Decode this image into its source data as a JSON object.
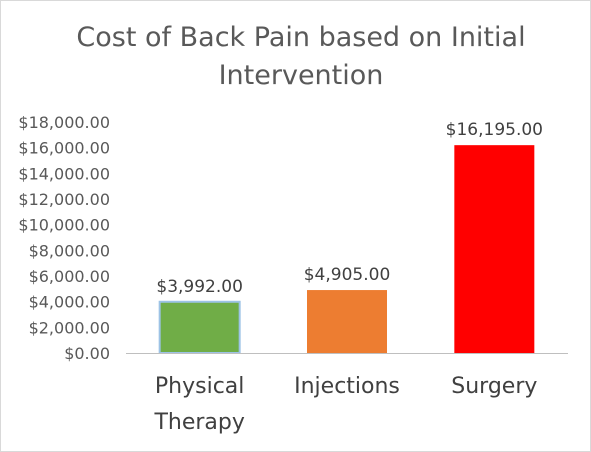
{
  "chart_data": {
    "type": "bar",
    "title": "Cost of Back Pain based on Initial Intervention",
    "categories": [
      [
        "Physical",
        "Therapy"
      ],
      [
        "Injections"
      ],
      [
        "Surgery"
      ]
    ],
    "values": [
      3992,
      4905,
      16195
    ],
    "data_labels": [
      "$3,992.00",
      "$4,905.00",
      "$16,195.00"
    ],
    "colors": [
      "#70ad47",
      "#ed7d31",
      "#ff0000"
    ],
    "ylim": [
      0,
      18000
    ],
    "yticks": [
      0,
      2000,
      4000,
      6000,
      8000,
      10000,
      12000,
      14000,
      16000,
      18000
    ],
    "ytick_labels": [
      "$0.00",
      "$2,000.00",
      "$4,000.00",
      "$6,000.00",
      "$8,000.00",
      "$10,000.00",
      "$12,000.00",
      "$14,000.00",
      "$16,000.00",
      "$18,000.00"
    ],
    "grid": false,
    "legend": "none"
  }
}
